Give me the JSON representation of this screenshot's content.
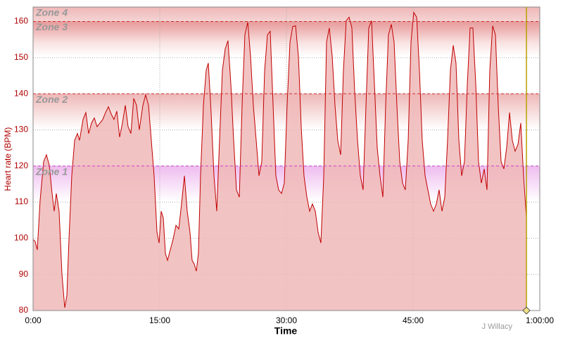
{
  "chart_data": {
    "type": "area",
    "xlabel": "Time",
    "ylabel": "Heart rate (BPM)",
    "credit": "J Willacy",
    "xlim": [
      0,
      60
    ],
    "ylim": [
      80,
      164
    ],
    "xticks": [
      {
        "value": 0,
        "label": "0:00"
      },
      {
        "value": 15,
        "label": "15:00"
      },
      {
        "value": 30,
        "label": "30:00"
      },
      {
        "value": 45,
        "label": "45:00"
      },
      {
        "value": 60,
        "label": "1:00:00"
      }
    ],
    "yticks": [
      80,
      90,
      100,
      110,
      120,
      130,
      140,
      150,
      160
    ],
    "grid": true,
    "zones": [
      {
        "name": "Zone 1",
        "value": 120,
        "color": "#d040d0"
      },
      {
        "name": "Zone 2",
        "value": 140,
        "color": "#d03030"
      },
      {
        "name": "Zone 3",
        "value": 160,
        "color": "#d03030"
      },
      {
        "name": "Zone 4",
        "value": 164,
        "color": "#d03030"
      }
    ],
    "cursor": 58.42,
    "cursor_color": "#b8a000",
    "series": [
      {
        "color": "#c00000",
        "fill": "#f0b8b8",
        "x": [
          0,
          0.25,
          0.5,
          0.83,
          1.25,
          1.58,
          1.92,
          2.25,
          2.5,
          2.75,
          3.08,
          3.42,
          3.75,
          4,
          4.25,
          4.58,
          4.92,
          5.25,
          5.5,
          5.92,
          6.25,
          6.58,
          6.92,
          7.25,
          7.58,
          7.92,
          8.25,
          8.58,
          8.92,
          9.25,
          9.58,
          9.92,
          10.25,
          10.58,
          10.92,
          11.25,
          11.58,
          11.92,
          12.25,
          12.58,
          13,
          13.33,
          13.67,
          14,
          14.33,
          14.67,
          14.92,
          15.17,
          15.42,
          15.67,
          15.92,
          16.25,
          16.58,
          16.92,
          17.25,
          17.58,
          17.92,
          18.25,
          18.58,
          18.83,
          19.08,
          19.33,
          19.58,
          19.83,
          20.17,
          20.5,
          20.75,
          21.08,
          21.42,
          21.75,
          22.08,
          22.42,
          22.75,
          23.08,
          23.42,
          23.75,
          24.08,
          24.42,
          24.75,
          25.08,
          25.42,
          25.75,
          26.08,
          26.42,
          26.75,
          27.08,
          27.42,
          27.75,
          28.08,
          28.42,
          28.75,
          29.08,
          29.42,
          29.75,
          30.08,
          30.42,
          30.75,
          31.08,
          31.42,
          31.75,
          32.08,
          32.42,
          32.75,
          33.08,
          33.42,
          33.75,
          34.08,
          34.42,
          34.75,
          35.08,
          35.42,
          35.75,
          36.08,
          36.42,
          36.75,
          37.08,
          37.42,
          37.75,
          38.08,
          38.42,
          38.75,
          39.08,
          39.42,
          39.75,
          40.08,
          40.42,
          40.75,
          41.08,
          41.42,
          41.75,
          42.08,
          42.42,
          42.75,
          43.08,
          43.42,
          43.75,
          44.08,
          44.42,
          44.75,
          45.08,
          45.42,
          45.75,
          46.08,
          46.42,
          46.75,
          47.08,
          47.42,
          47.75,
          48.08,
          48.42,
          48.75,
          49.08,
          49.42,
          49.75,
          50.08,
          50.42,
          50.75,
          51.08,
          51.42,
          51.75,
          52.08,
          52.42,
          52.75,
          53.08,
          53.42,
          53.75,
          54.08,
          54.42,
          54.75,
          55.08,
          55.42,
          55.75,
          56.08,
          56.42,
          56.75,
          57.08,
          57.42,
          57.75,
          58.08,
          58.42
        ],
        "values": [
          99.7,
          99.1,
          96.8,
          110.4,
          121.2,
          123.1,
          120.2,
          112.4,
          107.5,
          112.4,
          107.5,
          90,
          80.8,
          84.1,
          99.7,
          117.3,
          127.1,
          129,
          127.1,
          132.9,
          134.8,
          129,
          131.9,
          133.3,
          130.9,
          131.9,
          132.9,
          134.8,
          136.4,
          134.4,
          132.9,
          135.2,
          128,
          131.9,
          136.8,
          130.9,
          129,
          138.7,
          136.8,
          130,
          136.8,
          139.7,
          136.8,
          127.1,
          117.3,
          101.7,
          98.7,
          107.5,
          105.6,
          95.8,
          93.9,
          96.8,
          99.7,
          103.6,
          102.6,
          109.5,
          117.3,
          107.5,
          101.7,
          93.9,
          92.9,
          90.9,
          95.8,
          117.3,
          136.8,
          146.5,
          148.5,
          134.8,
          117.3,
          107.5,
          127.1,
          146.5,
          152.4,
          154.7,
          142.6,
          127.1,
          113.4,
          111.4,
          136.8,
          156.3,
          159.8,
          150.4,
          136.8,
          127.1,
          117.3,
          121.2,
          146.5,
          156.3,
          157.3,
          136.8,
          117.3,
          113.4,
          112.4,
          115.3,
          136.8,
          154.3,
          158.6,
          158.8,
          150.4,
          130.9,
          117.3,
          111.4,
          107.5,
          109.5,
          107.5,
          101.7,
          98.7,
          117.3,
          154.3,
          158.2,
          150.4,
          136.8,
          127.1,
          123.1,
          146.5,
          160.2,
          161.2,
          158.2,
          140.7,
          127.1,
          117.3,
          113.4,
          136.8,
          158.2,
          160.2,
          142.6,
          125.1,
          117.3,
          111.4,
          136.8,
          156.3,
          159.2,
          154.3,
          136.8,
          121.2,
          115.3,
          113.4,
          127.1,
          154.3,
          162.5,
          161.2,
          146.5,
          127.1,
          117.3,
          113.4,
          109.5,
          107.5,
          109.5,
          113.4,
          107.5,
          111.4,
          127.1,
          146.5,
          153.4,
          148.5,
          127.1,
          117.3,
          121.2,
          142.6,
          158.2,
          158.2,
          142.6,
          121.2,
          115.3,
          119.2,
          113.4,
          146.5,
          158.8,
          156.3,
          136.8,
          121.2,
          119.2,
          125.1,
          134.8,
          127.1,
          124.1,
          126,
          131.9,
          117.3,
          105.6
        ]
      }
    ]
  }
}
